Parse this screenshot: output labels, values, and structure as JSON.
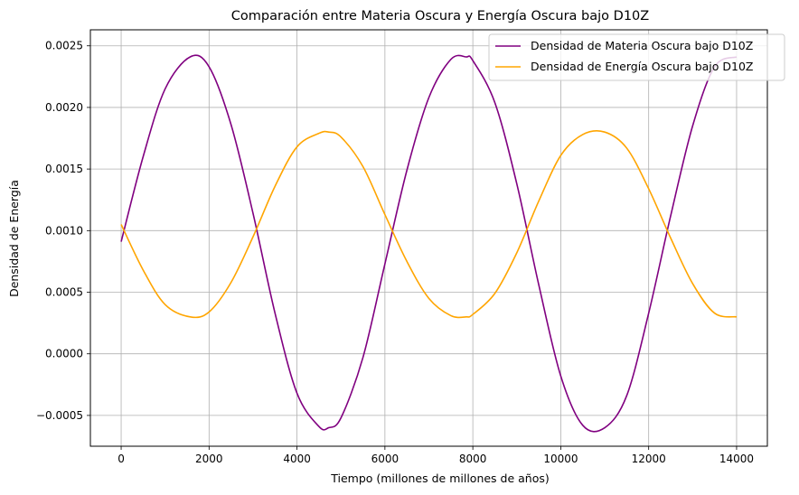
{
  "chart_data": {
    "type": "line",
    "title": "Comparación entre Materia Oscura y Energía Oscura bajo D10Z",
    "xlabel": "Tiempo (millones de millones de años)",
    "ylabel": "Densidad de Energía",
    "xlim": [
      -700,
      14700
    ],
    "ylim": [
      -0.00075,
      0.00263
    ],
    "xticks": [
      0,
      2000,
      4000,
      6000,
      8000,
      10000,
      12000,
      14000
    ],
    "xtick_labels": [
      "0",
      "2000",
      "4000",
      "6000",
      "8000",
      "10000",
      "12000",
      "14000"
    ],
    "yticks": [
      -0.0005,
      0.0,
      0.0005,
      0.001,
      0.0015,
      0.002,
      0.0025
    ],
    "ytick_labels": [
      "−0.0005",
      "0.0000",
      "0.0005",
      "0.0010",
      "0.0015",
      "0.0020",
      "0.0025"
    ],
    "grid": true,
    "legend_position": "upper right",
    "series": [
      {
        "name": "Densidad de Materia Oscura bajo D10Z",
        "color": "#800080",
        "x": [
          0,
          500,
          1000,
          1570,
          2000,
          2500,
          3000,
          3500,
          4000,
          4500,
          4720,
          5000,
          5500,
          6000,
          6500,
          7000,
          7500,
          7850,
          8000,
          8500,
          9000,
          9500,
          10000,
          10500,
          11000,
          11500,
          12000,
          12500,
          13000,
          13500,
          14000
        ],
        "y": [
          0.00091,
          0.0016,
          0.00215,
          0.00241,
          0.00233,
          0.00186,
          0.00114,
          0.00033,
          -0.00032,
          -0.00059,
          -0.0006,
          -0.00052,
          -3e-05,
          0.00073,
          0.00149,
          0.00208,
          0.00239,
          0.00241,
          0.00238,
          0.00204,
          0.00138,
          0.00056,
          -0.00018,
          -0.00058,
          -0.0006,
          -0.00034,
          0.00033,
          0.00112,
          0.00185,
          0.00233,
          0.00241
        ]
      },
      {
        "name": "Densidad de Energía Oscura bajo D10Z",
        "color": "#FFA500",
        "x": [
          0,
          500,
          1000,
          1570,
          2000,
          2500,
          3000,
          3500,
          4000,
          4500,
          4720,
          5000,
          5500,
          6000,
          6500,
          7000,
          7500,
          7850,
          8000,
          8500,
          9000,
          9500,
          10000,
          10500,
          11000,
          11500,
          12000,
          12500,
          13000,
          13500,
          14000
        ],
        "y": [
          0.00105,
          0.00068,
          0.0004,
          0.0003,
          0.00034,
          0.00058,
          0.00095,
          0.00136,
          0.00168,
          0.00179,
          0.0018,
          0.00176,
          0.00152,
          0.00113,
          0.00075,
          0.00045,
          0.00031,
          0.0003,
          0.00032,
          0.00049,
          0.00082,
          0.00124,
          0.00161,
          0.00178,
          0.0018,
          0.00167,
          0.00134,
          0.00094,
          0.00057,
          0.00033,
          0.0003
        ]
      }
    ]
  }
}
